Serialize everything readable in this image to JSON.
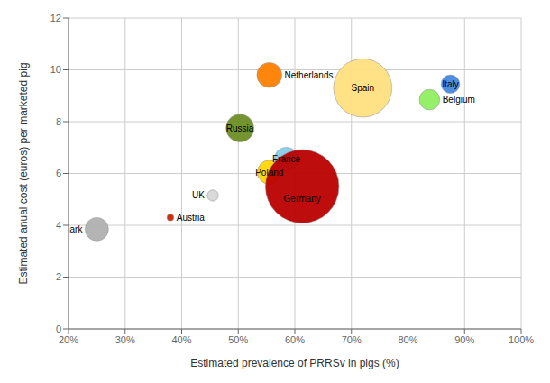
{
  "chart_data": {
    "type": "scatter",
    "x": [
      0.25,
      0.38,
      0.455,
      0.503,
      0.555,
      0.555,
      0.585,
      0.613,
      0.72,
      0.838,
      0.875
    ],
    "values": [
      3.85,
      4.3,
      5.15,
      7.75,
      9.8,
      6.05,
      6.55,
      5.5,
      9.3,
      8.85,
      9.45
    ],
    "sizes": [
      350,
      30,
      80,
      500,
      400,
      370,
      370,
      3500,
      2200,
      270,
      220
    ],
    "colors": [
      "#B0B0B0",
      "#CC2200",
      "#D8D8D8",
      "#6B8E23",
      "#FF8000",
      "#FFD700",
      "#87CEEB",
      "#BB0000",
      "#FFE080",
      "#90EE60",
      "#4488DD"
    ],
    "labels": [
      "Denmark",
      "Austria",
      "UK",
      "Russia",
      "Netherlands",
      "Poland",
      "France",
      "Germany",
      "Spain",
      "Belgium",
      "Italy"
    ],
    "xlabel": "Estimated prevalence of PRRSv in pigs (%)",
    "ylabel": "Estimated anual cost (euros) per marketed pig",
    "xlim": [
      0.2,
      1.0
    ],
    "ylim": [
      0,
      12
    ],
    "xticks": [
      {
        "value": 0.2,
        "label": "20%"
      },
      {
        "value": 0.3,
        "label": "30%"
      },
      {
        "value": 0.4,
        "label": "40%"
      },
      {
        "value": 0.5,
        "label": "50%"
      },
      {
        "value": 0.6,
        "label": "60%"
      },
      {
        "value": 0.7,
        "label": "70%"
      },
      {
        "value": 0.8,
        "label": "80%"
      },
      {
        "value": 0.9,
        "label": "90%"
      },
      {
        "value": 1.0,
        "label": "100%"
      }
    ],
    "yticks": [
      0,
      2,
      4,
      6,
      8,
      10,
      12
    ],
    "grid": true
  }
}
